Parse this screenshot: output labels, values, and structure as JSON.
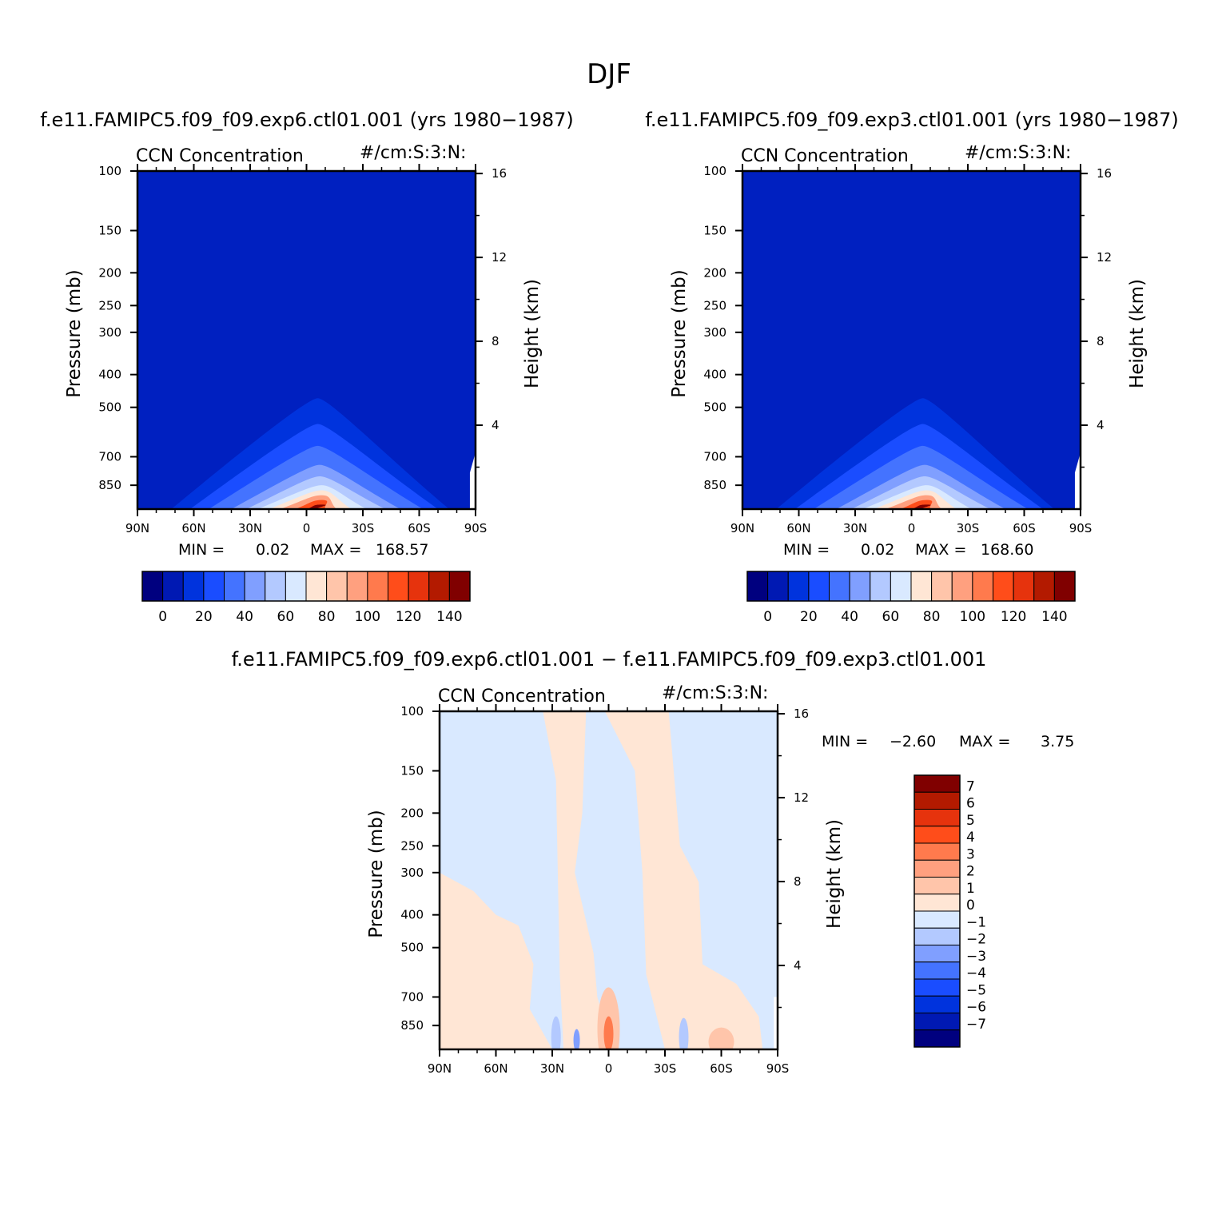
{
  "figure_title": "DJF",
  "colors": {
    "full_palette": [
      "#00007f",
      "#0019b3",
      "#0033dd",
      "#1a4dff",
      "#4473ff",
      "#809fff",
      "#b3c9ff",
      "#d9e9ff",
      "#ffe6d5",
      "#ffc5aa",
      "#ffa07f",
      "#ff7a4d",
      "#ff4d1a",
      "#e6330d",
      "#b31a00",
      "#800000"
    ],
    "background_fill": "#0020c0"
  },
  "chart_data": [
    {
      "type": "contour",
      "id": "panel_exp6",
      "title": "f.e11.FAMIPC5.f09_f09.exp6.ctl01.001 (yrs 1980−1987)",
      "variable": "CCN Concentration",
      "units": "#/cm:S:3:N:",
      "x_ticks": [
        "90N",
        "60N",
        "30N",
        "0",
        "30S",
        "60S",
        "90S"
      ],
      "x_values": [
        90,
        60,
        30,
        0,
        -30,
        -60,
        -90
      ],
      "xlim": [
        90,
        -90
      ],
      "ylabel": "Pressure (mb)",
      "y_ticks": [
        "100",
        "150",
        "200",
        "250",
        "300",
        "400",
        "500",
        "700",
        "850"
      ],
      "y_values": [
        100,
        150,
        200,
        250,
        300,
        400,
        500,
        700,
        850
      ],
      "ylim": [
        100,
        1000
      ],
      "y_scale": "log",
      "y2label": "Height (km)",
      "y2_ticks": [
        "16",
        "12",
        "8",
        "4"
      ],
      "y2_values": [
        16,
        12,
        8,
        4
      ],
      "min_label": "MIN =",
      "min_value": "0.02",
      "max_label": "MAX =",
      "max_value": "168.57",
      "colorbar": {
        "orientation": "horizontal",
        "labels": [
          "0",
          "20",
          "40",
          "60",
          "80",
          "100",
          "120",
          "140"
        ],
        "levels": [
          0,
          10,
          20,
          30,
          40,
          50,
          60,
          70,
          80,
          90,
          100,
          110,
          120,
          130,
          140
        ],
        "colors": [
          "#00007f",
          "#0019b3",
          "#0033dd",
          "#1a4dff",
          "#4473ff",
          "#809fff",
          "#b3c9ff",
          "#d9e9ff",
          "#ffe6d5",
          "#ffc5aa",
          "#ffa07f",
          "#ff7a4d",
          "#ff4d1a",
          "#e6330d",
          "#b31a00",
          "#800000"
        ]
      }
    },
    {
      "type": "contour",
      "id": "panel_exp3",
      "title": "f.e11.FAMIPC5.f09_f09.exp3.ctl01.001 (yrs 1980−1987)",
      "variable": "CCN Concentration",
      "units": "#/cm:S:3:N:",
      "x_ticks": [
        "90N",
        "60N",
        "30N",
        "0",
        "30S",
        "60S",
        "90S"
      ],
      "x_values": [
        90,
        60,
        30,
        0,
        -30,
        -60,
        -90
      ],
      "xlim": [
        90,
        -90
      ],
      "ylabel": "Pressure (mb)",
      "y_ticks": [
        "100",
        "150",
        "200",
        "250",
        "300",
        "400",
        "500",
        "700",
        "850"
      ],
      "y_values": [
        100,
        150,
        200,
        250,
        300,
        400,
        500,
        700,
        850
      ],
      "ylim": [
        100,
        1000
      ],
      "y_scale": "log",
      "y2label": "Height (km)",
      "y2_ticks": [
        "16",
        "12",
        "8",
        "4"
      ],
      "y2_values": [
        16,
        12,
        8,
        4
      ],
      "min_label": "MIN =",
      "min_value": "0.02",
      "max_label": "MAX =",
      "max_value": "168.60",
      "colorbar": {
        "orientation": "horizontal",
        "labels": [
          "0",
          "20",
          "40",
          "60",
          "80",
          "100",
          "120",
          "140"
        ],
        "levels": [
          0,
          10,
          20,
          30,
          40,
          50,
          60,
          70,
          80,
          90,
          100,
          110,
          120,
          130,
          140
        ],
        "colors": [
          "#00007f",
          "#0019b3",
          "#0033dd",
          "#1a4dff",
          "#4473ff",
          "#809fff",
          "#b3c9ff",
          "#d9e9ff",
          "#ffe6d5",
          "#ffc5aa",
          "#ffa07f",
          "#ff7a4d",
          "#ff4d1a",
          "#e6330d",
          "#b31a00",
          "#800000"
        ]
      }
    },
    {
      "type": "contour",
      "id": "panel_diff",
      "title": "f.e11.FAMIPC5.f09_f09.exp6.ctl01.001 − f.e11.FAMIPC5.f09_f09.exp3.ctl01.001",
      "variable": "CCN Concentration",
      "units": "#/cm:S:3:N:",
      "x_ticks": [
        "90N",
        "60N",
        "30N",
        "0",
        "30S",
        "60S",
        "90S"
      ],
      "x_values": [
        90,
        60,
        30,
        0,
        -30,
        -60,
        -90
      ],
      "xlim": [
        90,
        -90
      ],
      "ylabel": "Pressure (mb)",
      "y_ticks": [
        "100",
        "150",
        "200",
        "250",
        "300",
        "400",
        "500",
        "700",
        "850"
      ],
      "y_values": [
        100,
        150,
        200,
        250,
        300,
        400,
        500,
        700,
        850
      ],
      "ylim": [
        100,
        1000
      ],
      "y_scale": "log",
      "y2label": "Height (km)",
      "y2_ticks": [
        "16",
        "12",
        "8",
        "4"
      ],
      "y2_values": [
        16,
        12,
        8,
        4
      ],
      "min_label": "MIN =",
      "min_value": "−2.60",
      "max_label": "MAX =",
      "max_value": "3.75",
      "colorbar": {
        "orientation": "vertical",
        "labels": [
          "7",
          "6",
          "5",
          "4",
          "3",
          "2",
          "1",
          "0",
          "−1",
          "−2",
          "−3",
          "−4",
          "−5",
          "−6",
          "−7"
        ],
        "levels": [
          7,
          6,
          5,
          4,
          3,
          2,
          1,
          0,
          -1,
          -2,
          -3,
          -4,
          -5,
          -6,
          -7
        ],
        "colors": [
          "#800000",
          "#b31a00",
          "#e6330d",
          "#ff4d1a",
          "#ff7a4d",
          "#ffa07f",
          "#ffc5aa",
          "#ffe6d5",
          "#d9e9ff",
          "#b3c9ff",
          "#809fff",
          "#4473ff",
          "#1a4dff",
          "#0033dd",
          "#0019b3",
          "#00007f"
        ]
      }
    }
  ]
}
